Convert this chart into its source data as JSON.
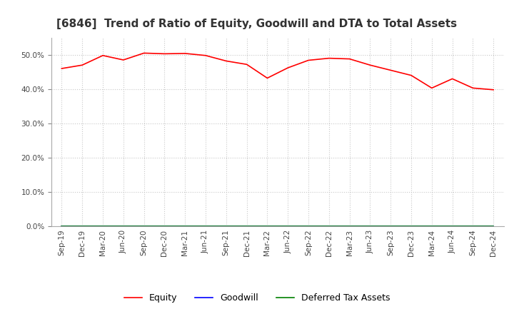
{
  "title": "[6846]  Trend of Ratio of Equity, Goodwill and DTA to Total Assets",
  "x_labels": [
    "Sep-19",
    "Dec-19",
    "Mar-20",
    "Jun-20",
    "Sep-20",
    "Dec-20",
    "Mar-21",
    "Jun-21",
    "Sep-21",
    "Dec-21",
    "Mar-22",
    "Jun-22",
    "Sep-22",
    "Dec-22",
    "Mar-23",
    "Jun-23",
    "Sep-23",
    "Dec-23",
    "Mar-24",
    "Jun-24",
    "Sep-24",
    "Dec-24"
  ],
  "equity": [
    0.46,
    0.47,
    0.498,
    0.485,
    0.505,
    0.503,
    0.504,
    0.498,
    0.482,
    0.472,
    0.432,
    0.462,
    0.484,
    0.49,
    0.488,
    0.47,
    0.455,
    0.44,
    0.403,
    0.43,
    0.403,
    0.398
  ],
  "goodwill": [
    0.0,
    0.0,
    0.0,
    0.0,
    0.0,
    0.0,
    0.0,
    0.0,
    0.0,
    0.0,
    0.0,
    0.0,
    0.0,
    0.0,
    0.0,
    0.0,
    0.0,
    0.0,
    0.0,
    0.0,
    0.0,
    0.0
  ],
  "dta": [
    0.0,
    0.0,
    0.0,
    0.0,
    0.0,
    0.0,
    0.0,
    0.0,
    0.0,
    0.0,
    0.0,
    0.0,
    0.0,
    0.0,
    0.0,
    0.0,
    0.0,
    0.0,
    0.0,
    0.0,
    0.0,
    0.0
  ],
  "equity_color": "#ff0000",
  "goodwill_color": "#0000ff",
  "dta_color": "#008000",
  "ylim": [
    0.0,
    0.55
  ],
  "yticks": [
    0.0,
    0.1,
    0.2,
    0.3,
    0.4,
    0.5
  ],
  "background_color": "#ffffff",
  "grid_color": "#c8c8c8",
  "title_fontsize": 11,
  "tick_fontsize": 7.5,
  "legend_labels": [
    "Equity",
    "Goodwill",
    "Deferred Tax Assets"
  ],
  "legend_fontsize": 9
}
